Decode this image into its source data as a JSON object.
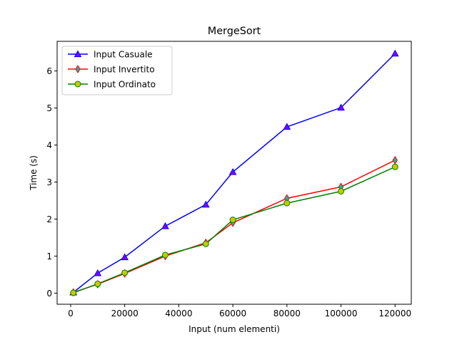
{
  "chart_data": {
    "type": "line",
    "title": "MergeSort",
    "xlabel": "Input (num elementi)",
    "ylabel": "Time (s)",
    "xlim": [
      -5000,
      126000
    ],
    "ylim": [
      -0.3,
      6.8
    ],
    "xticks": [
      0,
      20000,
      40000,
      60000,
      80000,
      100000,
      120000
    ],
    "yticks": [
      0,
      1,
      2,
      3,
      4,
      5,
      6
    ],
    "grid": false,
    "legend_position": "upper-left",
    "x": [
      1000,
      10000,
      20000,
      35000,
      50000,
      60000,
      80000,
      100000,
      120000
    ],
    "series": [
      {
        "name": "Input Casuale",
        "color": "#0000ff",
        "marker": "triangle",
        "marker_fill": "#8000ff",
        "values": [
          0.02,
          0.54,
          0.97,
          1.81,
          2.39,
          3.27,
          4.49,
          5.01,
          6.47
        ]
      },
      {
        "name": "Input Invertito",
        "color": "#ff0000",
        "marker": "thin-diamond",
        "marker_fill": "#20b2aa",
        "values": [
          0.02,
          0.24,
          0.53,
          1.0,
          1.36,
          1.9,
          2.56,
          2.87,
          3.59
        ]
      },
      {
        "name": "Input Ordinato",
        "color": "#008000",
        "marker": "circle",
        "marker_fill": "#c8c800",
        "values": [
          0.01,
          0.25,
          0.55,
          1.03,
          1.33,
          1.98,
          2.43,
          2.75,
          3.41
        ]
      }
    ]
  }
}
